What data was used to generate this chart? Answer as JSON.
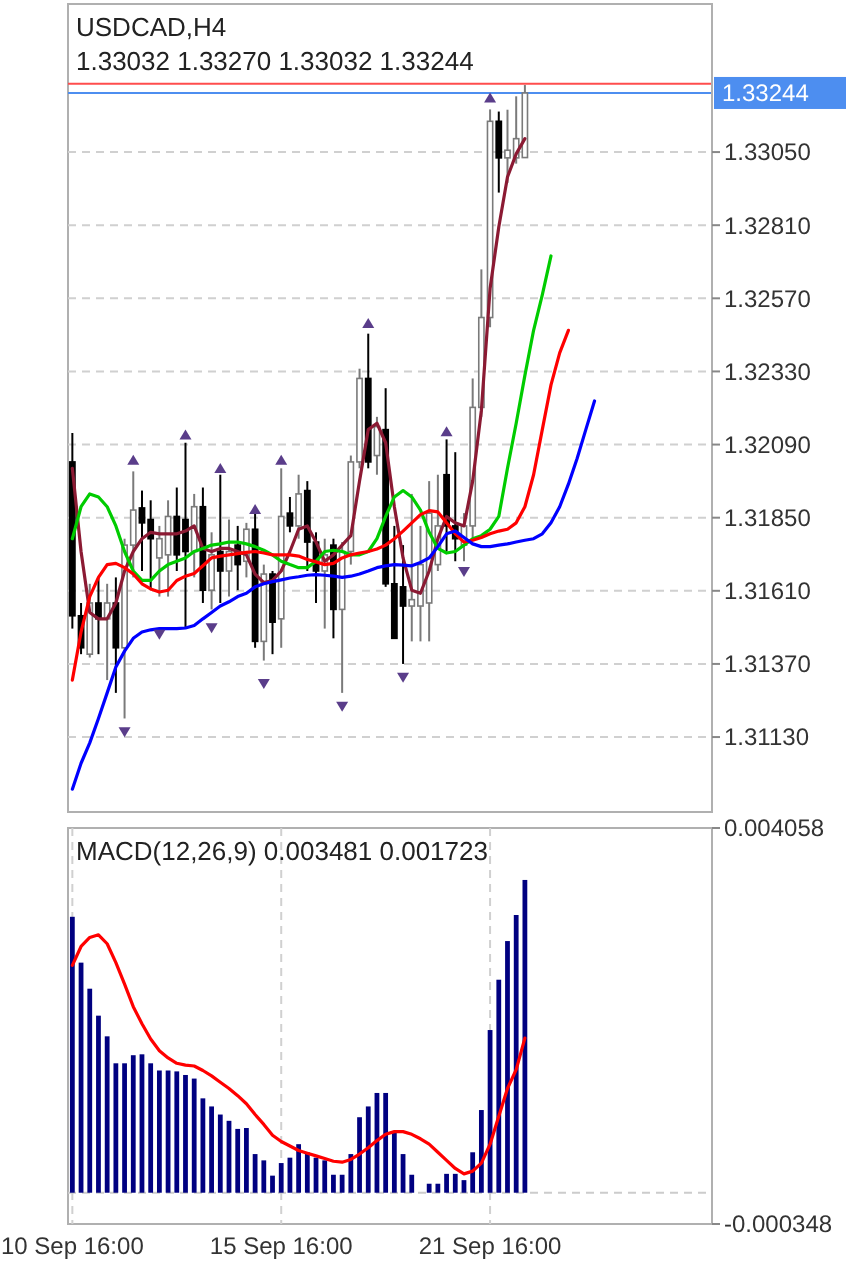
{
  "chart_data": [
    {
      "type": "candlestick",
      "title": "USDCAD,H4",
      "subtitle": "1.33032 1.33270 1.33032 1.33244",
      "categories": [
        null,
        null,
        null,
        null,
        null,
        null,
        null,
        null,
        null,
        null,
        null,
        null,
        null,
        null,
        null,
        null,
        null,
        null,
        null,
        null,
        null,
        null,
        null,
        null,
        null,
        null,
        null,
        null,
        null,
        null,
        null,
        null,
        null,
        null,
        null,
        null,
        null,
        null,
        null,
        null,
        null,
        null,
        null,
        null,
        null,
        null,
        null,
        null,
        null,
        null,
        null,
        null,
        null,
        null,
        null,
        null,
        null,
        null,
        null,
        null,
        null,
        null,
        null,
        null,
        null,
        null,
        null,
        null,
        null,
        null,
        null,
        null,
        null,
        null
      ],
      "ohlc": [
        [
          1.32033,
          1.32128,
          1.31486,
          1.31528
        ],
        [
          1.31528,
          1.3157,
          1.31402,
          1.31423
        ],
        [
          1.31402,
          1.31633,
          1.31391,
          1.3157
        ],
        [
          1.3157,
          1.31654,
          1.31402,
          1.31518
        ],
        [
          1.31518,
          1.31633,
          1.31317,
          1.3157
        ],
        [
          1.3157,
          1.31654,
          1.31275,
          1.31423
        ],
        [
          1.31423,
          1.31781,
          1.31191,
          1.3176
        ],
        [
          1.3176,
          1.32002,
          1.31654,
          1.31875
        ],
        [
          1.31882,
          1.31939,
          1.31675,
          1.31833
        ],
        [
          1.31844,
          1.31907,
          1.31612,
          1.31781
        ],
        [
          1.31718,
          1.31823,
          1.31591,
          1.31781
        ],
        [
          1.31728,
          1.31907,
          1.31591,
          1.31854
        ],
        [
          1.31854,
          1.31949,
          1.31675,
          1.31728
        ],
        [
          1.31844,
          1.32096,
          1.31486,
          1.31739
        ],
        [
          1.31739,
          1.31928,
          1.31654,
          1.31886
        ],
        [
          1.31886,
          1.31949,
          1.3157,
          1.31612
        ],
        [
          1.31612,
          1.31802,
          1.31549,
          1.31728
        ],
        [
          1.31739,
          1.31991,
          1.3157,
          1.31675
        ],
        [
          1.31675,
          1.31844,
          1.31591,
          1.31739
        ],
        [
          1.3176,
          1.31823,
          1.31612,
          1.31696
        ],
        [
          1.31707,
          1.31833,
          1.31654,
          1.31812
        ],
        [
          1.31812,
          1.31865,
          1.31423,
          1.31444
        ],
        [
          1.31444,
          1.31696,
          1.31381,
          1.31665
        ],
        [
          1.31665,
          1.31675,
          1.31402,
          1.31507
        ],
        [
          1.31518,
          1.32012,
          1.31423,
          1.31854
        ],
        [
          1.31865,
          1.31918,
          1.31802,
          1.31823
        ],
        [
          1.31823,
          1.31991,
          1.31781,
          1.31928
        ],
        [
          1.31939,
          1.3197,
          1.31675,
          1.3177
        ],
        [
          1.3177,
          1.31802,
          1.3157,
          1.31675
        ],
        [
          1.31675,
          1.31781,
          1.31486,
          1.31728
        ],
        [
          1.3176,
          1.31781,
          1.31454,
          1.31549
        ],
        [
          1.31549,
          1.3177,
          1.31275,
          1.31739
        ],
        [
          1.31739,
          1.32054,
          1.31696,
          1.32033
        ],
        [
          1.32033,
          1.32339,
          1.32012,
          1.32307
        ],
        [
          1.32307,
          1.32454,
          1.32012,
          1.32033
        ],
        [
          1.32054,
          1.32181,
          1.31991,
          1.32149
        ],
        [
          1.32139,
          1.32275,
          1.31623,
          1.31633
        ],
        [
          1.31633,
          1.31823,
          1.31454,
          1.31454
        ],
        [
          1.31623,
          1.3176,
          1.3137,
          1.3156
        ],
        [
          1.3156,
          1.31928,
          1.31444,
          1.31581
        ],
        [
          1.3156,
          1.31823,
          1.31444,
          1.31696
        ],
        [
          1.3157,
          1.3197,
          1.31444,
          1.31865
        ],
        [
          1.31696,
          1.31991,
          1.31675,
          1.31823
        ],
        [
          1.31991,
          1.32107,
          1.31739,
          1.31823
        ],
        [
          1.31823,
          1.32065,
          1.31707,
          1.31781
        ],
        [
          1.3176,
          1.31865,
          1.31707,
          1.31823
        ],
        [
          1.31823,
          1.32307,
          1.31781,
          1.32212
        ],
        [
          1.32212,
          1.32665,
          1.32181,
          1.32507
        ],
        [
          1.32507,
          1.3319,
          1.32475,
          1.33151
        ],
        [
          1.33151,
          1.33183,
          1.32917,
          1.33031
        ],
        [
          1.33031,
          1.33189,
          1.32949,
          1.33056
        ],
        [
          1.33031,
          1.33233,
          1.33012,
          1.33094
        ],
        [
          1.33032,
          1.3327,
          1.33032,
          1.33244
        ],
        null,
        null,
        null,
        null,
        null,
        null,
        null,
        null,
        null,
        null,
        null,
        null,
        null,
        null,
        null,
        null,
        null,
        null,
        null,
        null,
        null
      ],
      "series": [
        {
          "type": "line",
          "color": "#8b1a33",
          "values": [
            1.32012,
            1.31739,
            1.31539,
            1.31518,
            1.31518,
            1.3157,
            1.31675,
            1.31739,
            1.31781,
            1.31802,
            1.31797,
            1.31797,
            1.31797,
            1.31806,
            1.31823,
            1.31749,
            1.31739,
            1.31749,
            1.31749,
            1.31739,
            1.31728,
            1.31665,
            1.31637,
            1.31644,
            1.31675,
            1.31739,
            1.31812,
            1.31823,
            1.3177,
            1.31707,
            1.31728,
            1.3176,
            1.31791,
            1.3197,
            1.32139,
            1.3216,
            1.32096,
            1.31886,
            1.31718,
            1.31612,
            1.31602,
            1.31675,
            1.31781,
            1.31854,
            1.31833,
            1.31823,
            1.3197,
            1.32202,
            1.32602,
            1.32804,
            1.32968,
            1.33044,
            1.33094,
            null,
            null,
            null,
            null,
            null,
            null,
            null,
            null,
            null,
            null,
            null,
            null,
            null,
            null,
            null,
            null,
            null,
            null,
            null,
            null,
            null
          ]
        },
        {
          "type": "line",
          "color": "#00cc00",
          "values": [
            1.31781,
            1.31886,
            1.31928,
            1.31918,
            1.31886,
            1.31823,
            1.31739,
            1.31675,
            1.31644,
            1.31644,
            1.31675,
            1.31696,
            1.31707,
            1.31718,
            1.31739,
            1.31749,
            1.3176,
            1.31764,
            1.3177,
            1.3177,
            1.31764,
            1.31755,
            1.31743,
            1.31728,
            1.31707,
            1.31696,
            1.31686,
            1.31686,
            1.31707,
            1.31739,
            1.31743,
            1.31739,
            1.31728,
            1.31728,
            1.31739,
            1.31781,
            1.31854,
            1.31918,
            1.31939,
            1.31918,
            1.31875,
            1.31802,
            1.31749,
            1.31734,
            1.31739,
            1.3176,
            1.31781,
            1.31791,
            1.31812,
            1.31854,
            1.32012,
            1.3216,
            1.32317,
            1.32465,
            1.32581,
            1.32709,
            null,
            null,
            null,
            null,
            null,
            null,
            null,
            null,
            null,
            null,
            null,
            null,
            null,
            null,
            null,
            null,
            null,
            null
          ]
        },
        {
          "type": "line",
          "color": "#ff0000",
          "values": [
            1.31317,
            1.31475,
            1.31591,
            1.31654,
            1.31696,
            1.317,
            1.31686,
            1.31665,
            1.31633,
            1.31616,
            1.31606,
            1.31612,
            1.31644,
            1.31658,
            1.31667,
            1.31692,
            1.31718,
            1.31724,
            1.31728,
            1.31732,
            1.31736,
            1.31739,
            1.31734,
            1.31728,
            1.31728,
            1.31728,
            1.31724,
            1.31713,
            1.31705,
            1.31696,
            1.317,
            1.31718,
            1.31728,
            1.31734,
            1.31739,
            1.31747,
            1.3176,
            1.31781,
            1.31806,
            1.31833,
            1.3186,
            1.31873,
            1.31869,
            1.31833,
            1.31797,
            1.3177,
            1.31776,
            1.31785,
            1.31797,
            1.31806,
            1.31812,
            1.31833,
            1.31886,
            1.31991,
            1.32139,
            1.32286,
            1.32391,
            1.32465,
            null,
            null,
            null,
            null,
            null,
            null,
            null,
            null,
            null,
            null,
            null,
            null,
            null,
            null,
            null,
            null
          ]
        },
        {
          "type": "line",
          "color": "#0000ff",
          "values": [
            1.30959,
            1.31044,
            1.31111,
            1.31191,
            1.31275,
            1.3136,
            1.31412,
            1.31454,
            1.31475,
            1.31482,
            1.31486,
            1.31486,
            1.31486,
            1.31488,
            1.31496,
            1.31518,
            1.31539,
            1.3156,
            1.31574,
            1.31591,
            1.31602,
            1.31623,
            1.31633,
            1.3164,
            1.31646,
            1.31652,
            1.31656,
            1.31661,
            1.31663,
            1.31661,
            1.31658,
            1.31654,
            1.31658,
            1.31665,
            1.31675,
            1.31686,
            1.31692,
            1.31696,
            1.31694,
            1.31692,
            1.31703,
            1.31718,
            1.31755,
            1.31797,
            1.31806,
            1.31785,
            1.31764,
            1.31755,
            1.31755,
            1.3176,
            1.31764,
            1.3177,
            1.31776,
            1.31781,
            1.31797,
            1.31833,
            1.31886,
            1.3196,
            1.32044,
            1.32139,
            1.32233,
            null,
            null,
            null,
            null,
            null,
            null,
            null,
            null,
            null,
            null,
            null,
            null,
            null
          ]
        },
        {
          "type": "scatter",
          "color": "#5a3d8a",
          "marker": "triangle",
          "values": [
            null,
            null,
            null,
            null,
            null,
            null,
            null,
            1.32037,
            null,
            null,
            null,
            null,
            null,
            1.3212,
            null,
            null,
            null,
            1.3201,
            null,
            null,
            null,
            1.31875,
            null,
            null,
            1.32037,
            null,
            null,
            null,
            null,
            null,
            null,
            null,
            null,
            null,
            1.32486,
            null,
            null,
            null,
            null,
            null,
            null,
            null,
            null,
            1.3213,
            null,
            null,
            null,
            null,
            1.33226,
            null,
            null,
            null,
            null,
            null,
            null,
            null,
            null,
            null,
            null,
            null,
            null,
            null,
            null,
            null,
            null,
            null,
            null,
            null,
            null,
            null,
            null,
            null,
            null,
            null
          ]
        },
        {
          "type": "scatter",
          "color": "#5a3d8a",
          "marker": "triangle-down",
          "values": [
            null,
            null,
            null,
            null,
            null,
            null,
            1.31149,
            null,
            null,
            null,
            1.31469,
            null,
            null,
            null,
            null,
            null,
            1.3149,
            null,
            null,
            null,
            null,
            null,
            1.31307,
            null,
            null,
            null,
            null,
            null,
            null,
            null,
            null,
            1.31233,
            null,
            null,
            null,
            null,
            null,
            null,
            1.31328,
            null,
            null,
            null,
            null,
            null,
            null,
            1.31675,
            null,
            null,
            null,
            null,
            null,
            null,
            null,
            null,
            null,
            null,
            null,
            null,
            null,
            null,
            null,
            null,
            null,
            null,
            null,
            null,
            null,
            null,
            null,
            null,
            null,
            null,
            null,
            null
          ]
        }
      ],
      "ylim": [
        1.30884,
        1.33536
      ],
      "yticks": [
        {
          "value": 1.3113,
          "label": "1.31130"
        },
        {
          "value": 1.3137,
          "label": "1.31370"
        },
        {
          "value": 1.3161,
          "label": "1.31610"
        },
        {
          "value": 1.3185,
          "label": "1.31850"
        },
        {
          "value": 1.3209,
          "label": "1.32090"
        },
        {
          "value": 1.3233,
          "label": "1.32330"
        },
        {
          "value": 1.3257,
          "label": "1.32570"
        },
        {
          "value": 1.3281,
          "label": "1.32810"
        },
        {
          "value": 1.3305,
          "label": "1.33050"
        }
      ],
      "grid": "y",
      "ref_lines": [
        {
          "axis": "y",
          "value": 1.33274,
          "color": "#ff4d4d",
          "line_style": "solid"
        },
        {
          "axis": "y",
          "value": 1.33244,
          "label": "1.33244",
          "color": "#4d8ef0",
          "line_style": "solid"
        }
      ]
    },
    {
      "type": "bar",
      "title": "MACD(12,26,9) 0.003481 0.001723",
      "categories": [
        "10 Sep 16:00",
        null,
        null,
        null,
        null,
        null,
        null,
        null,
        null,
        null,
        null,
        null,
        null,
        null,
        null,
        null,
        null,
        null,
        null,
        null,
        null,
        null,
        null,
        null,
        "15 Sep 16:00",
        null,
        null,
        null,
        null,
        null,
        null,
        null,
        null,
        null,
        null,
        null,
        null,
        null,
        null,
        null,
        null,
        null,
        null,
        null,
        null,
        null,
        null,
        null,
        "21 Sep 16:00",
        null,
        null,
        null,
        null,
        null,
        null,
        null,
        null,
        null,
        null,
        null,
        null,
        null,
        null,
        null,
        null,
        null,
        null,
        null,
        null,
        null,
        null,
        null,
        null,
        null
      ],
      "series": [
        {
          "type": "bar",
          "color": "#000080",
          "values": [
            0.00307,
            0.00256,
            0.00227,
            0.00197,
            0.00174,
            0.00144,
            0.00144,
            0.00153,
            0.00154,
            0.00144,
            0.00136,
            0.00136,
            0.00135,
            0.00131,
            0.00127,
            0.00105,
            0.00096,
            0.00087,
            0.0008,
            0.00071,
            0.00072,
            0.00043,
            0.00036,
            0.00019,
            0.00033,
            0.00039,
            0.00054,
            0.00045,
            0.00039,
            0.00036,
            0.0002,
            0.0002,
            0.00043,
            0.00084,
            0.00096,
            0.00111,
            0.00111,
            0.00068,
            0.00043,
            0.0002,
            0,
            0.0001,
            0.0001,
            0.00021,
            0.00021,
            0.00014,
            0.00045,
            0.00092,
            0.00181,
            0.00237,
            0.0028,
            0.00309,
            0.00348,
            null,
            null,
            null,
            null,
            null,
            null,
            null,
            null,
            null,
            null,
            null,
            null,
            null,
            null,
            null,
            null,
            null,
            null,
            null,
            null,
            null
          ]
        },
        {
          "type": "line",
          "color": "#ff0000",
          "values": [
            0.00253,
            0.00274,
            0.00284,
            0.00287,
            0.00277,
            0.00256,
            0.00232,
            0.00207,
            0.00188,
            0.00171,
            0.00158,
            0.0015,
            0.00144,
            0.00142,
            0.00141,
            0.00136,
            0.0013,
            0.00123,
            0.00116,
            0.00108,
            0.00099,
            0.00087,
            0.00076,
            0.00064,
            0.00057,
            0.00052,
            0.00047,
            0.00044,
            0.00041,
            0.00038,
            0.00035,
            0.00034,
            0.00037,
            0.00043,
            0.0005,
            0.00058,
            0.00065,
            0.00068,
            0.00068,
            0.00065,
            0.0006,
            0.00054,
            0.00045,
            0.00036,
            0.00027,
            0.00021,
            0.00024,
            0.00033,
            0.00054,
            0.00085,
            0.00116,
            0.00137,
            0.00172,
            null,
            null,
            null,
            null,
            null,
            null,
            null,
            null,
            null,
            null,
            null,
            null,
            null,
            null,
            null,
            null,
            null,
            null,
            null,
            null,
            null
          ]
        }
      ],
      "ylim": [
        -0.000348,
        0.004058
      ],
      "yticks": [
        -0.000348,
        0.004058
      ],
      "grid": "x",
      "ref_lines": [
        {
          "axis": "y",
          "value": 0,
          "color": "#cccccc",
          "line_style": "dashed"
        }
      ]
    }
  ]
}
